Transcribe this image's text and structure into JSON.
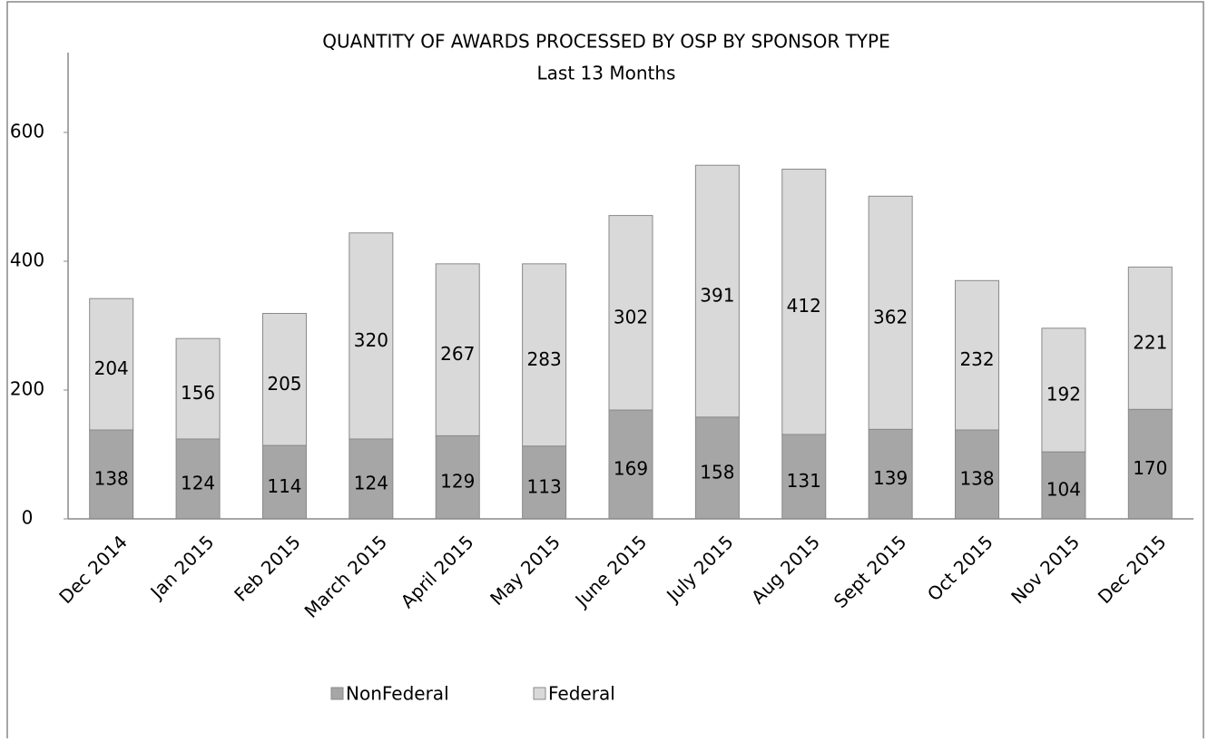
{
  "chart_data": {
    "type": "stacked_bar",
    "title": "QUANTITY OF AWARDS PROCESSED BY OSP BY SPONSOR TYPE",
    "subtitle": "Last 13 Months",
    "categories": [
      "Dec 2014",
      "Jan 2015",
      "Feb 2015",
      "March 2015",
      "April 2015",
      "May 2015",
      "June 2015",
      "July 2015",
      "Aug 2015",
      "Sept 2015",
      "Oct 2015",
      "Nov 2015",
      "Dec 2015"
    ],
    "series": [
      {
        "name": "NonFederal",
        "color": "#a6a6a6",
        "values": [
          138,
          124,
          114,
          124,
          129,
          113,
          169,
          158,
          131,
          139,
          138,
          104,
          170
        ]
      },
      {
        "name": "Federal",
        "color": "#d9d9d9",
        "values": [
          204,
          156,
          205,
          320,
          267,
          283,
          302,
          391,
          412,
          362,
          232,
          192,
          221
        ]
      }
    ],
    "ylim": [
      0,
      700
    ],
    "yticks": [
      0,
      200,
      400,
      600
    ],
    "grid": false,
    "legend": "bottom"
  }
}
